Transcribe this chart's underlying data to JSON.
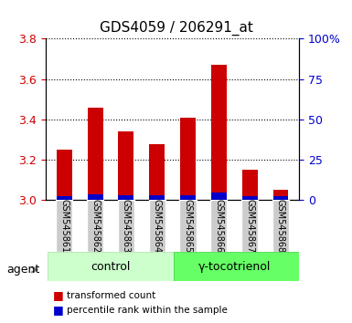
{
  "title": "GDS4059 / 206291_at",
  "samples": [
    "GSM545861",
    "GSM545862",
    "GSM545863",
    "GSM545864",
    "GSM545865",
    "GSM545866",
    "GSM545867",
    "GSM545868"
  ],
  "red_values": [
    3.25,
    3.46,
    3.34,
    3.28,
    3.41,
    3.67,
    3.15,
    3.05
  ],
  "blue_values": [
    0.022,
    0.028,
    0.025,
    0.024,
    0.026,
    0.04,
    0.022,
    0.022
  ],
  "ylim": [
    3.0,
    3.8
  ],
  "yticks_left": [
    3.0,
    3.2,
    3.4,
    3.6,
    3.8
  ],
  "yticks_right": [
    0,
    25,
    50,
    75,
    100
  ],
  "ylabel_left_color": "#cc0000",
  "ylabel_right_color": "#0000cc",
  "bar_color_red": "#cc0000",
  "bar_color_blue": "#0000cc",
  "bar_width": 0.5,
  "legend_red": "transformed count",
  "legend_blue": "percentile rank within the sample"
}
